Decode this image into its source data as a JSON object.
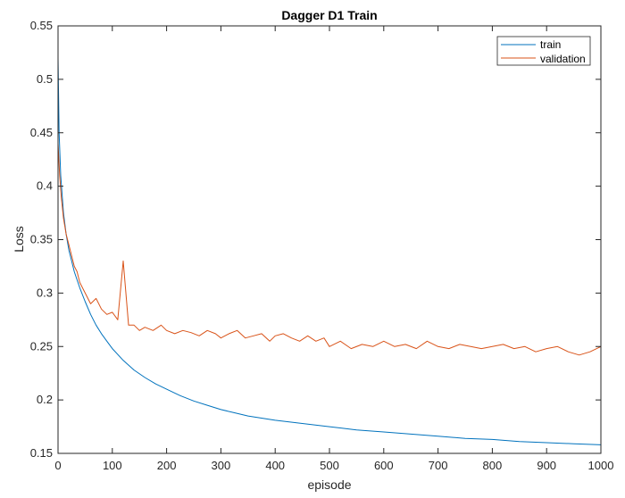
{
  "chart_data": {
    "type": "line",
    "title": "Dagger D1 Train",
    "xlabel": "episode",
    "ylabel": "Loss",
    "xlim": [
      0,
      1000
    ],
    "ylim": [
      0.15,
      0.55
    ],
    "x_ticks": [
      0,
      100,
      200,
      300,
      400,
      500,
      600,
      700,
      800,
      900,
      1000
    ],
    "y_ticks": [
      0.15,
      0.2,
      0.25,
      0.3,
      0.35,
      0.4,
      0.45,
      0.5,
      0.55
    ],
    "x_tick_labels": [
      "0",
      "100",
      "200",
      "300",
      "400",
      "500",
      "600",
      "700",
      "800",
      "900",
      "1000"
    ],
    "y_tick_labels": [
      "0.15",
      "0.2",
      "0.25",
      "0.3",
      "0.35",
      "0.4",
      "0.45",
      "0.5",
      "0.55"
    ],
    "grid": false,
    "legend_position": "top-right",
    "series": [
      {
        "name": "train",
        "color": "#0072bd",
        "x": [
          0,
          2,
          5,
          10,
          15,
          20,
          25,
          30,
          40,
          50,
          60,
          70,
          80,
          90,
          100,
          120,
          140,
          160,
          180,
          200,
          225,
          250,
          275,
          300,
          325,
          350,
          375,
          400,
          450,
          500,
          550,
          600,
          650,
          700,
          750,
          800,
          850,
          900,
          950,
          1000
        ],
        "values": [
          0.52,
          0.45,
          0.41,
          0.375,
          0.355,
          0.34,
          0.33,
          0.32,
          0.305,
          0.292,
          0.28,
          0.27,
          0.262,
          0.255,
          0.248,
          0.237,
          0.228,
          0.221,
          0.215,
          0.21,
          0.204,
          0.199,
          0.195,
          0.191,
          0.188,
          0.185,
          0.183,
          0.181,
          0.178,
          0.175,
          0.172,
          0.17,
          0.168,
          0.166,
          0.164,
          0.163,
          0.161,
          0.16,
          0.159,
          0.158
        ]
      },
      {
        "name": "validation",
        "color": "#d95319",
        "x": [
          0,
          3,
          6,
          10,
          15,
          20,
          25,
          30,
          35,
          40,
          50,
          60,
          70,
          80,
          90,
          100,
          110,
          120,
          130,
          140,
          150,
          160,
          175,
          190,
          200,
          215,
          230,
          245,
          260,
          275,
          290,
          300,
          315,
          330,
          345,
          360,
          375,
          390,
          400,
          415,
          430,
          445,
          460,
          475,
          490,
          500,
          520,
          540,
          560,
          580,
          600,
          620,
          640,
          660,
          680,
          700,
          720,
          740,
          760,
          780,
          800,
          820,
          840,
          860,
          880,
          900,
          920,
          940,
          960,
          980,
          1000
        ],
        "values": [
          0.44,
          0.41,
          0.39,
          0.37,
          0.355,
          0.345,
          0.335,
          0.325,
          0.32,
          0.31,
          0.3,
          0.29,
          0.295,
          0.285,
          0.28,
          0.282,
          0.275,
          0.33,
          0.27,
          0.27,
          0.265,
          0.268,
          0.265,
          0.27,
          0.265,
          0.262,
          0.265,
          0.263,
          0.26,
          0.265,
          0.262,
          0.258,
          0.262,
          0.265,
          0.258,
          0.26,
          0.262,
          0.255,
          0.26,
          0.262,
          0.258,
          0.255,
          0.26,
          0.255,
          0.258,
          0.25,
          0.255,
          0.248,
          0.252,
          0.25,
          0.255,
          0.25,
          0.252,
          0.248,
          0.255,
          0.25,
          0.248,
          0.252,
          0.25,
          0.248,
          0.25,
          0.252,
          0.248,
          0.25,
          0.245,
          0.248,
          0.25,
          0.245,
          0.242,
          0.245,
          0.25
        ]
      }
    ]
  }
}
